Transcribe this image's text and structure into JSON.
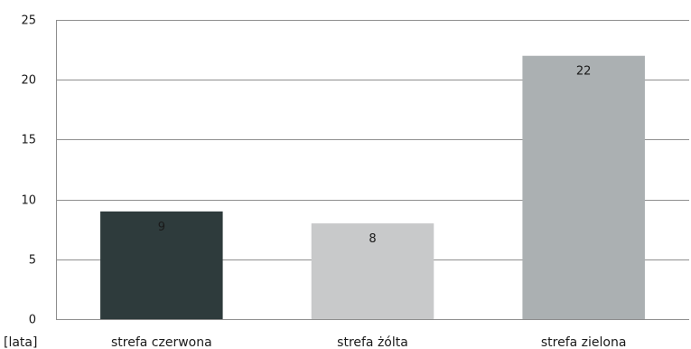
{
  "chart_data": {
    "type": "bar",
    "categories": [
      "strefa czerwona",
      "strefa żólta",
      "strefa zielona"
    ],
    "values": [
      9,
      8,
      22
    ],
    "data_labels": [
      "9",
      "8",
      "22"
    ],
    "bar_colors": [
      "#2e3b3c",
      "#c8c9ca",
      "#abb0b2"
    ],
    "ylim": [
      0,
      25
    ],
    "yticks": [
      "0",
      "5",
      "10",
      "15",
      "20",
      "25"
    ],
    "ylabel": "[lata]",
    "grid": true,
    "grid_color": "#8e8e8e",
    "legend": false
  }
}
